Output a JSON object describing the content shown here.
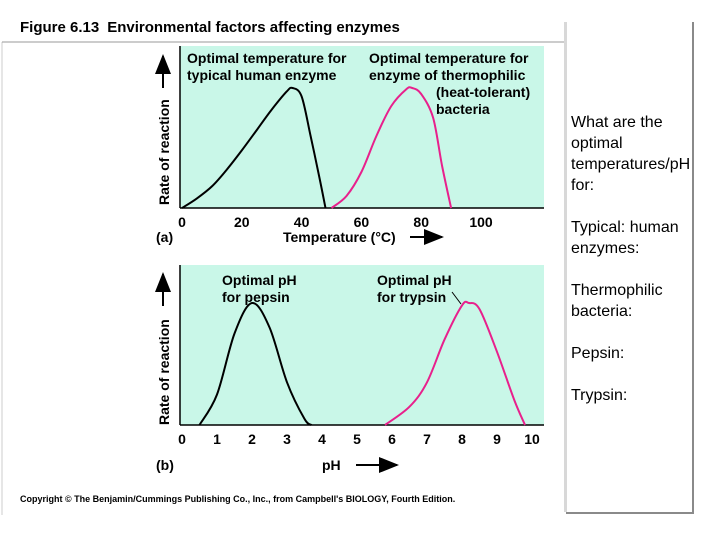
{
  "figure": {
    "title_number": "Figure 6.13",
    "title_text": "Environmental factors affecting enzymes",
    "copyright": "Copyright © The Benjamin/Cummings Publishing Co., Inc., from Campbell's BIOLOGY, Fourth Edition."
  },
  "colors": {
    "plot_background": "#c9f7e8",
    "human_enzyme_curve": "#000000",
    "bacteria_curve": "#e8208c",
    "pepsin_curve": "#000000",
    "trypsin_curve": "#e8208c"
  },
  "chart_data": [
    {
      "type": "line",
      "panel_label": "(a)",
      "xlabel": "Temperature (°C)",
      "ylabel": "Rate of reaction",
      "xlim": [
        0,
        100
      ],
      "xticks": [
        "0",
        "20",
        "40",
        "60",
        "80",
        "100"
      ],
      "grid": false,
      "annotations": [
        {
          "lines": [
            "Optimal temperature for",
            "typical human enzyme"
          ]
        },
        {
          "lines": [
            "Optimal temperature for",
            "enzyme of thermophilic",
            "(heat-tolerant)",
            "bacteria"
          ]
        }
      ],
      "series": [
        {
          "key": "human",
          "x": [
            0,
            5,
            10,
            15,
            20,
            25,
            30,
            35,
            37,
            40,
            43,
            46,
            48
          ],
          "y": [
            0,
            0.08,
            0.18,
            0.32,
            0.48,
            0.65,
            0.82,
            0.97,
            1.0,
            0.93,
            0.6,
            0.25,
            0
          ]
        },
        {
          "key": "bacteria",
          "x": [
            50,
            55,
            60,
            65,
            70,
            75,
            77,
            80,
            84,
            87,
            90
          ],
          "y": [
            0,
            0.1,
            0.3,
            0.6,
            0.85,
            0.99,
            1.0,
            0.95,
            0.75,
            0.35,
            0
          ]
        }
      ]
    },
    {
      "type": "line",
      "panel_label": "(b)",
      "xlabel": "pH",
      "ylabel": "Rate of reaction",
      "xlim": [
        0,
        10
      ],
      "xticks": [
        "0",
        "1",
        "2",
        "3",
        "4",
        "5",
        "6",
        "7",
        "8",
        "9",
        "10"
      ],
      "grid": false,
      "annotations": [
        {
          "lines": [
            "Optimal pH",
            "for pepsin"
          ]
        },
        {
          "lines": [
            "Optimal pH",
            "for trypsin"
          ]
        }
      ],
      "series": [
        {
          "key": "pepsin",
          "x": [
            0.5,
            1.0,
            1.5,
            2.0,
            2.5,
            3.0,
            3.5,
            3.7
          ],
          "y": [
            0,
            0.25,
            0.75,
            1.0,
            0.8,
            0.35,
            0.05,
            0
          ]
        },
        {
          "key": "trypsin",
          "x": [
            5.8,
            6.5,
            7.0,
            7.5,
            8.0,
            8.2,
            8.5,
            9.0,
            9.5,
            9.8
          ],
          "y": [
            0,
            0.15,
            0.35,
            0.7,
            0.98,
            1.0,
            0.95,
            0.6,
            0.2,
            0
          ]
        }
      ]
    }
  ],
  "side_panel": {
    "question": "What are the optimal temperatures/pH for:",
    "items": [
      "Typical: human enzymes:",
      "Thermophilic bacteria:",
      "Pepsin:",
      "Trypsin:"
    ]
  }
}
